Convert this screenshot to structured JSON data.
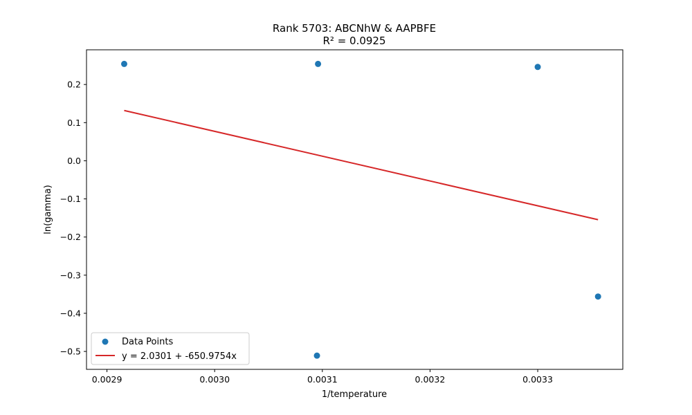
{
  "chart_data": {
    "type": "scatter",
    "title": "Rank 5703: ABCNhW & AAPBFE",
    "subtitle": "R² = 0.0925",
    "xlabel": "1/temperature",
    "ylabel": "ln(gamma)",
    "xlim": [
      0.002881,
      0.003379
    ],
    "ylim": [
      -0.547,
      0.291
    ],
    "xticks": [
      {
        "value": 0.0029,
        "label": "0.0029"
      },
      {
        "value": 0.003,
        "label": "0.0030"
      },
      {
        "value": 0.0031,
        "label": "0.0031"
      },
      {
        "value": 0.0032,
        "label": "0.0032"
      },
      {
        "value": 0.0033,
        "label": "0.0033"
      }
    ],
    "yticks": [
      {
        "value": 0.2,
        "label": "0.2"
      },
      {
        "value": 0.1,
        "label": "0.1"
      },
      {
        "value": 0.0,
        "label": "0.0"
      },
      {
        "value": -0.1,
        "label": "−0.1"
      },
      {
        "value": -0.2,
        "label": "−0.2"
      },
      {
        "value": -0.3,
        "label": "−0.3"
      },
      {
        "value": -0.4,
        "label": "−0.4"
      },
      {
        "value": -0.5,
        "label": "−0.5"
      }
    ],
    "grid": false,
    "legend_position": "lower-left",
    "series": [
      {
        "name": "Data Points",
        "kind": "scatter",
        "color": "#1f77b4",
        "points": [
          {
            "x": 0.002916,
            "y": 0.254
          },
          {
            "x": 0.003096,
            "y": 0.254
          },
          {
            "x": 0.0033,
            "y": 0.246
          },
          {
            "x": 0.003356,
            "y": -0.356
          },
          {
            "x": 0.003095,
            "y": -0.511
          }
        ]
      },
      {
        "name": "y = 2.0301 + -650.9754x",
        "kind": "line",
        "color": "#d62728",
        "intercept": 2.0301,
        "slope": -650.9754,
        "x_range": [
          0.002916,
          0.003356
        ]
      }
    ]
  }
}
